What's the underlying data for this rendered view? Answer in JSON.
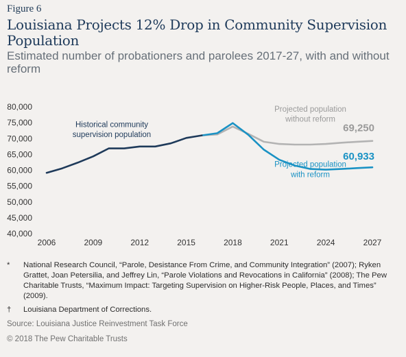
{
  "header": {
    "figure": "Figure 6",
    "title": "Louisiana Projects 12% Drop in Community Supervision Population",
    "subtitle": "Estimated number of probationers and parolees 2017-27, with and without reform"
  },
  "chart_data": {
    "type": "line",
    "title": "Louisiana Projects 12% Drop in Community Supervision Population",
    "xlim": [
      2006,
      2027
    ],
    "ylim": [
      40000,
      80000
    ],
    "x_ticks": [
      "2006",
      "2009",
      "2012",
      "2015",
      "2018",
      "2021",
      "2024",
      "2027"
    ],
    "y_ticks": [
      "40,000",
      "45,000",
      "50,000",
      "55,000",
      "60,000",
      "65,000",
      "70,000",
      "75,000",
      "80,000"
    ],
    "grid": false,
    "series": [
      {
        "name": "Historical community supervision population",
        "color": "#1e3a5a",
        "x": [
          2006,
          2007,
          2008,
          2009,
          2010,
          2011,
          2012,
          2013,
          2014,
          2015,
          2016
        ],
        "values": [
          59200,
          60600,
          62400,
          64400,
          66900,
          66900,
          67500,
          67500,
          68500,
          70200,
          71000
        ]
      },
      {
        "name": "Projected population without reform",
        "color": "#b3b3b3",
        "x": [
          2016,
          2017,
          2018,
          2019,
          2020,
          2021,
          2022,
          2023,
          2024,
          2025,
          2026,
          2027
        ],
        "values": [
          71000,
          71300,
          73800,
          71500,
          69000,
          68300,
          68100,
          68100,
          68300,
          68700,
          69000,
          69250
        ]
      },
      {
        "name": "Projected population with reform",
        "color": "#1a92c4",
        "x": [
          2016,
          2017,
          2018,
          2019,
          2020,
          2021,
          2022,
          2023,
          2024,
          2025,
          2026,
          2027
        ],
        "values": [
          71000,
          71700,
          74900,
          71200,
          66500,
          63300,
          61500,
          60400,
          60200,
          60400,
          60700,
          60933
        ]
      }
    ],
    "labels": {
      "historical": [
        "Historical community",
        "supervision population"
      ],
      "without_reform": [
        "Projected population",
        "without reform"
      ],
      "with_reform": [
        "Projected population",
        "with reform"
      ]
    },
    "end_values": {
      "without_reform": "69,250",
      "with_reform": "60,933"
    }
  },
  "notes": [
    {
      "mark": "*",
      "text": "National Research Council, “Parole, Desistance From Crime, and Community Integration” (2007); Ryken Grattet, Joan Petersilia, and Jeffrey Lin, “Parole Violations and Revocations in California” (2008); The Pew Charitable Trusts, “Maximum Impact: Targeting Supervision on Higher-Risk People, Places, and Times” (2009)."
    },
    {
      "mark": "†",
      "text": "Louisiana Department of Corrections."
    }
  ],
  "source": "Source: Louisiana Justice Reinvestment Task Force",
  "copyright": "© 2018 The Pew Charitable Trusts"
}
